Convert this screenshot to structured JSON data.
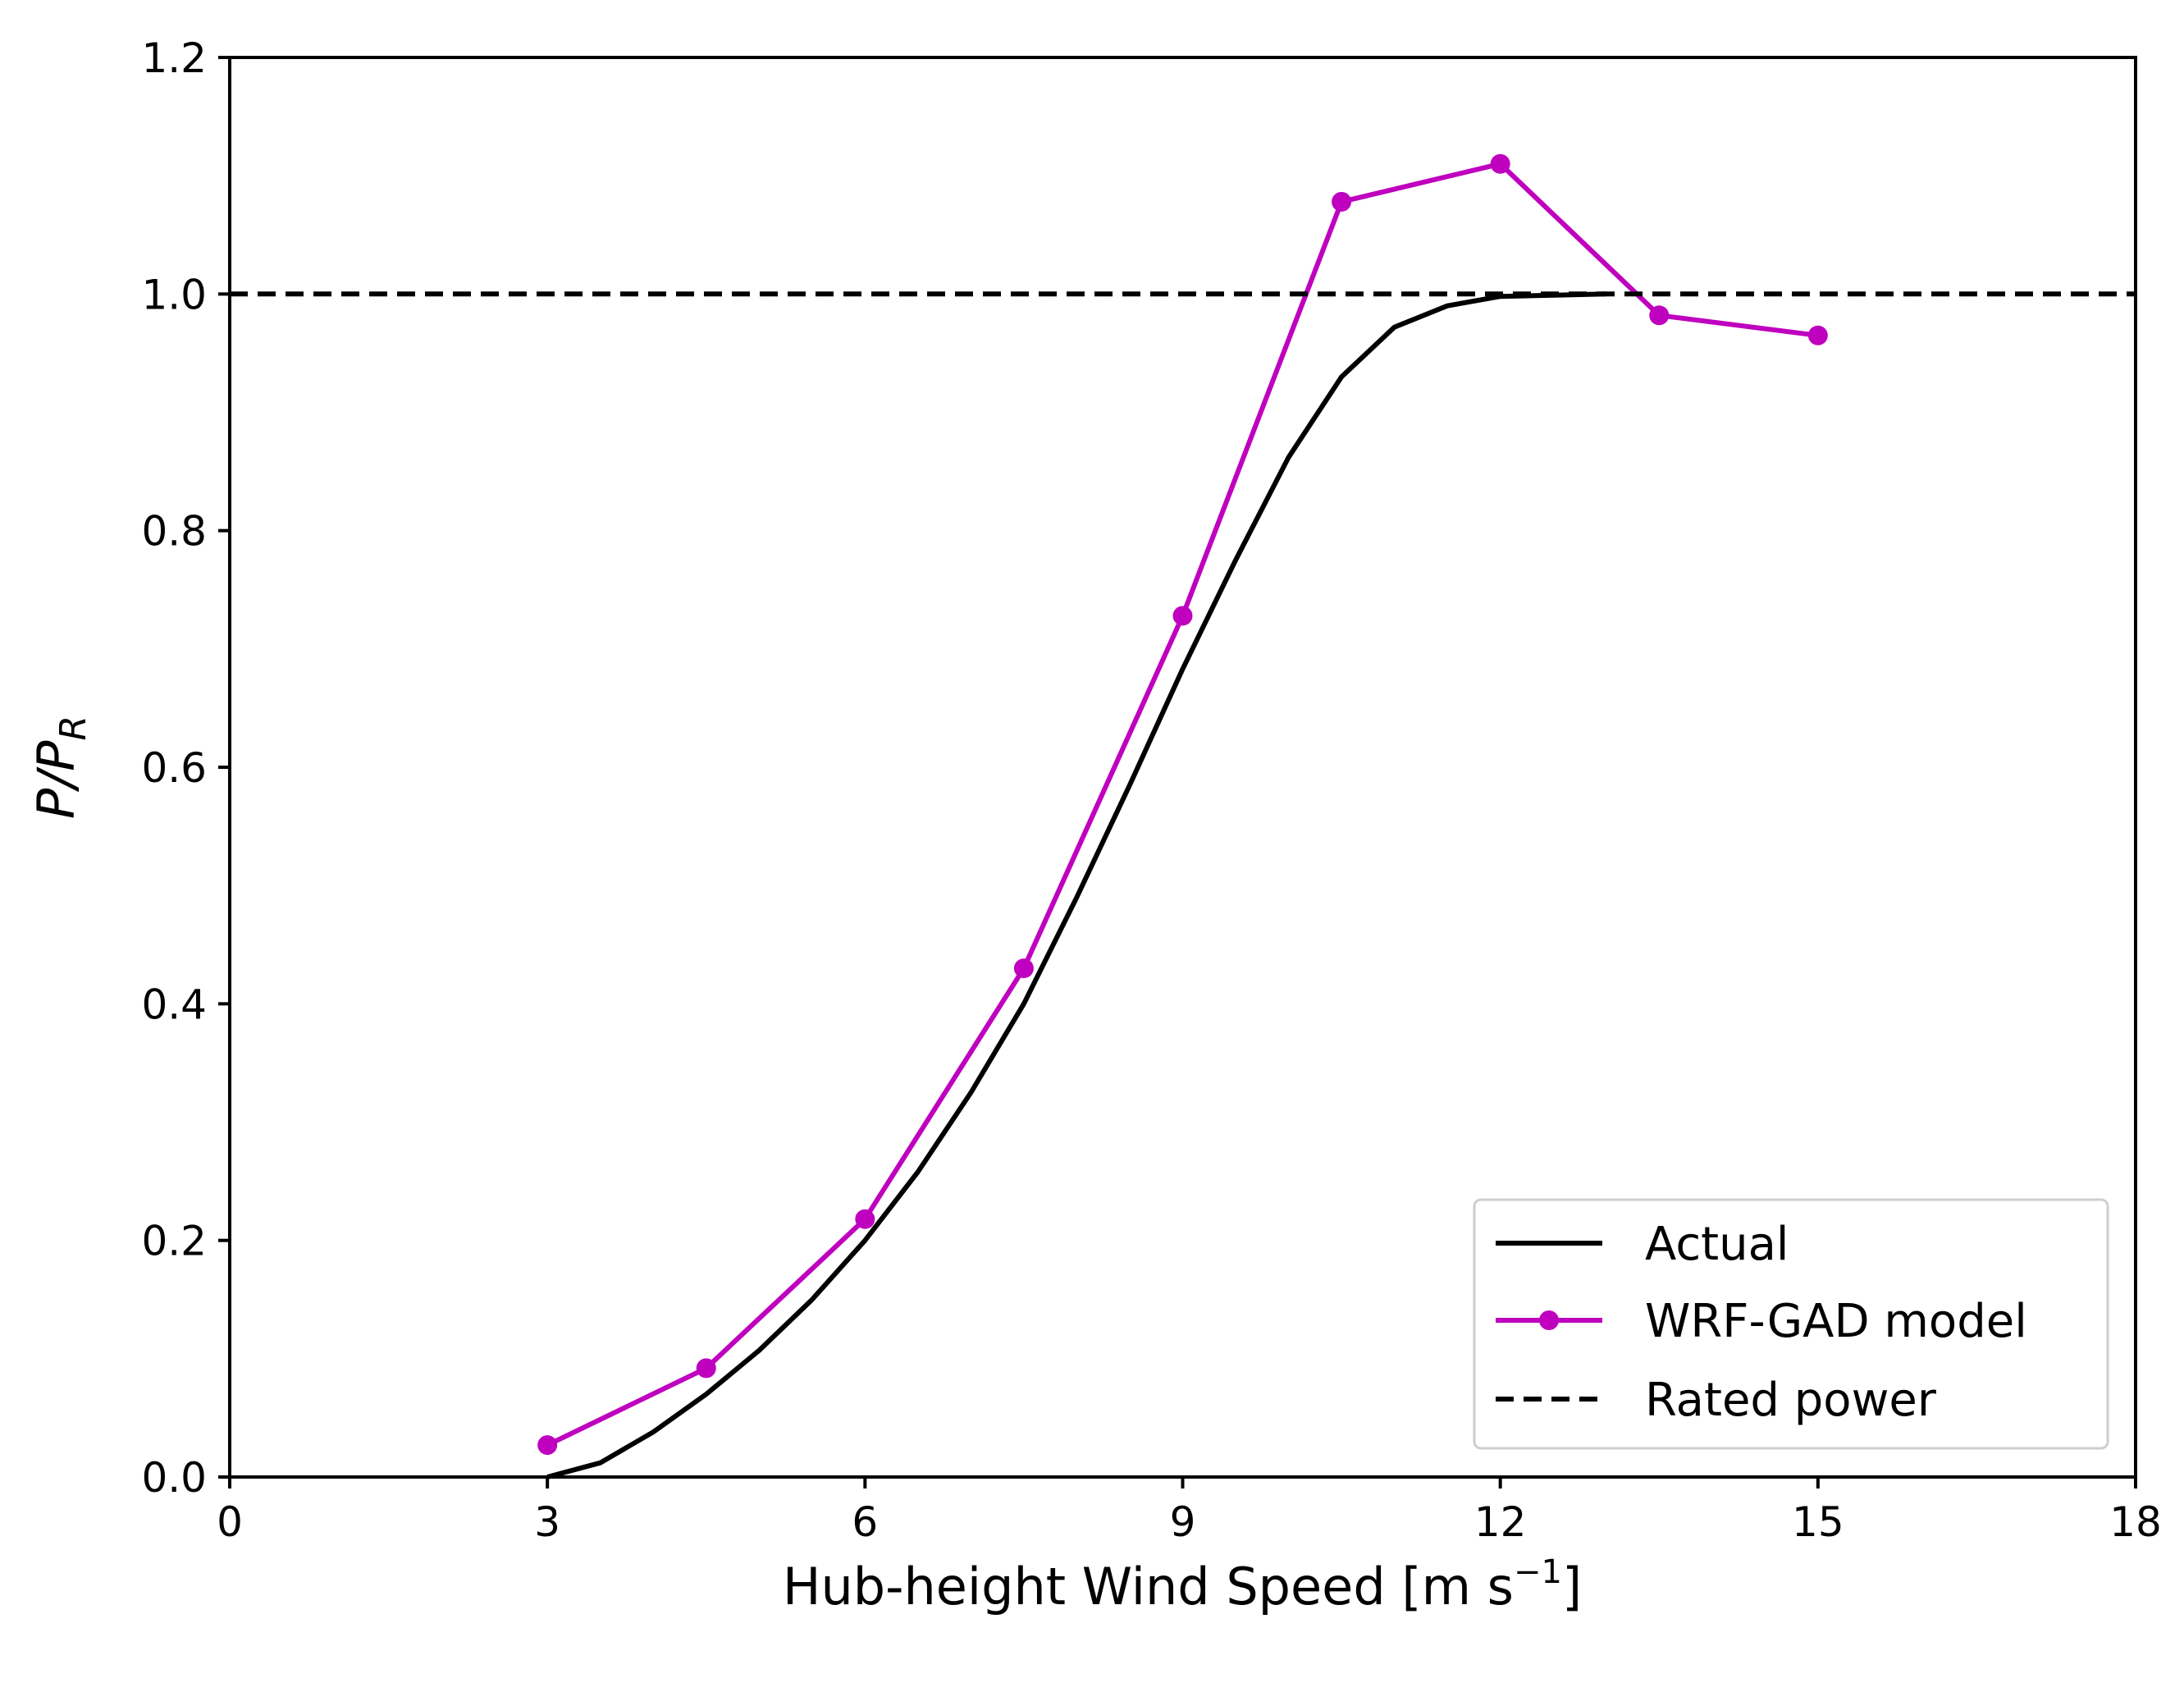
{
  "chart_data": {
    "type": "line",
    "title": "",
    "xlabel": "Hub-height Wind Speed [m s",
    "xlabel_sup": "−1",
    "xlabel_close": "]",
    "ylabel_main": "P/P",
    "ylabel_sub": "R",
    "xlim": [
      0,
      18
    ],
    "ylim": [
      0,
      1.2
    ],
    "xticks": [
      0,
      3,
      6,
      9,
      12,
      15,
      18
    ],
    "xtick_labels": [
      "0",
      "3",
      "6",
      "9",
      "12",
      "15",
      "18"
    ],
    "yticks": [
      0.0,
      0.2,
      0.4,
      0.6,
      0.8,
      1.0,
      1.2
    ],
    "ytick_labels": [
      "0.0",
      "0.2",
      "0.4",
      "0.6",
      "0.8",
      "1.0",
      "1.2"
    ],
    "grid": false,
    "legend_position": "bottom-right",
    "series": [
      {
        "name": "Actual",
        "color": "#000000",
        "style": "solid",
        "markers": false,
        "x": [
          3,
          3.5,
          4,
          4.5,
          5,
          5.5,
          6,
          6.5,
          7,
          7.5,
          8,
          8.5,
          9,
          9.5,
          10,
          10.5,
          11,
          11.5,
          12,
          12.5,
          13
        ],
        "y": [
          0.0,
          0.012,
          0.038,
          0.07,
          0.107,
          0.15,
          0.2,
          0.258,
          0.325,
          0.4,
          0.49,
          0.585,
          0.683,
          0.775,
          0.862,
          0.93,
          0.972,
          0.99,
          0.998,
          0.999,
          1.0
        ]
      },
      {
        "name": "WRF-GAD model",
        "color": "#bf00bf",
        "style": "solid",
        "markers": true,
        "x": [
          3,
          4.5,
          6,
          7.5,
          9,
          10.5,
          12,
          13.5,
          15
        ],
        "y": [
          0.027,
          0.092,
          0.218,
          0.43,
          0.728,
          1.078,
          1.11,
          0.982,
          0.965
        ]
      },
      {
        "name": "Rated power",
        "color": "#000000",
        "style": "dashed",
        "markers": false,
        "x": [
          0,
          18
        ],
        "y": [
          1.0,
          1.0
        ]
      }
    ]
  }
}
